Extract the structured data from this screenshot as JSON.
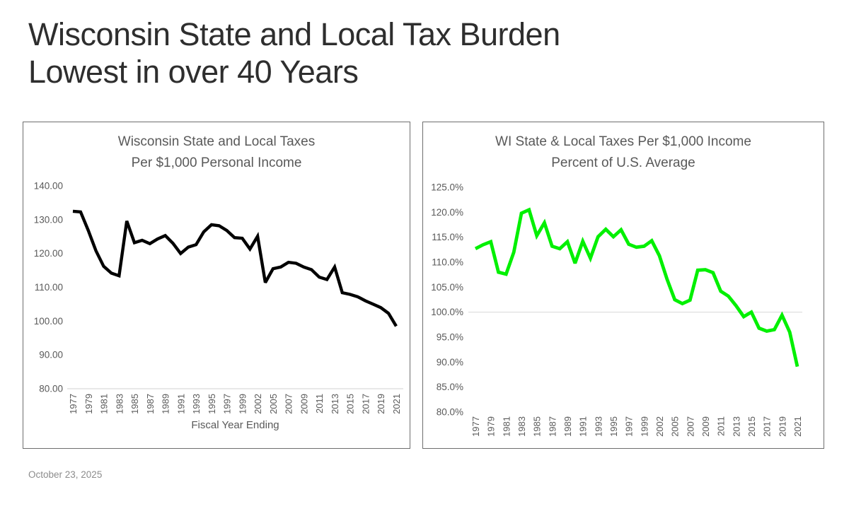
{
  "page": {
    "title_line1": "Wisconsin State and Local Tax Burden",
    "title_line2": "Lowest in over 40 Years",
    "footer": "October 23, 2025",
    "background_color": "#ffffff",
    "title_color": "#2e2e2e",
    "chart_text_color": "#595959"
  },
  "chart_data": [
    {
      "type": "line",
      "title_line1": "Wisconsin State and Local Taxes",
      "title_line2": "Per $1,000 Personal Income",
      "x_axis_title": "Fiscal Year Ending",
      "line_color": "#000000",
      "gridline_color": "#d9d9d9",
      "legend": "none",
      "ylim": [
        80,
        140
      ],
      "y_tick_labels": [
        "140.00",
        "130.00",
        "120.00",
        "110.00",
        "100.00",
        "90.00",
        "80.00"
      ],
      "y_tick_values": [
        140,
        130,
        120,
        110,
        100,
        90,
        80
      ],
      "gridline_values": [
        80
      ],
      "x_tick_labels": [
        "1977",
        "1979",
        "1981",
        "1983",
        "1985",
        "1987",
        "1989",
        "1991",
        "1993",
        "1995",
        "1997",
        "1999",
        "2002",
        "2005",
        "2007",
        "2009",
        "2011",
        "2013",
        "2015",
        "2017",
        "2019",
        "2021"
      ],
      "x": [
        1977,
        1978,
        1979,
        1980,
        1981,
        1982,
        1983,
        1984,
        1985,
        1986,
        1987,
        1988,
        1989,
        1990,
        1991,
        1992,
        1993,
        1994,
        1995,
        1996,
        1997,
        1998,
        1999,
        2001,
        2002,
        2004,
        2005,
        2006,
        2007,
        2008,
        2009,
        2010,
        2011,
        2012,
        2013,
        2014,
        2015,
        2016,
        2017,
        2018,
        2019,
        2020,
        2021
      ],
      "values": [
        132.5,
        132.3,
        126.8,
        120.8,
        116.2,
        114.2,
        113.4,
        129.6,
        123.2,
        123.9,
        122.9,
        124.3,
        125.3,
        123.0,
        120.0,
        121.9,
        122.6,
        126.4,
        128.5,
        128.2,
        126.8,
        124.7,
        124.5,
        121.3,
        125.1,
        111.4,
        115.5,
        116.0,
        117.4,
        117.1,
        116.0,
        115.2,
        113.0,
        112.3,
        116.0,
        108.4,
        107.9,
        107.2,
        106.0,
        105.0,
        104.0,
        102.3,
        98.5
      ]
    },
    {
      "type": "line",
      "title_line1": "WI State & Local Taxes Per $1,000 Income",
      "title_line2": "Percent of U.S. Average",
      "x_axis_title": "",
      "line_color": "#00f000",
      "gridline_color": "#e0e0e0",
      "legend": "none",
      "ylim": [
        80,
        125
      ],
      "y_tick_labels": [
        "125.0%",
        "120.0%",
        "115.0%",
        "110.0%",
        "105.0%",
        "100.0%",
        "95.0%",
        "90.0%",
        "85.0%",
        "80.0%"
      ],
      "y_tick_values": [
        125,
        120,
        115,
        110,
        105,
        100,
        95,
        90,
        85,
        80
      ],
      "gridline_values": [
        100
      ],
      "x_tick_labels": [
        "1977",
        "1979",
        "1981",
        "1983",
        "1985",
        "1987",
        "1989",
        "1991",
        "1993",
        "1995",
        "1997",
        "1999",
        "2002",
        "2005",
        "2007",
        "2009",
        "2011",
        "2013",
        "2015",
        "2017",
        "2019",
        "2021"
      ],
      "x": [
        1977,
        1978,
        1979,
        1980,
        1981,
        1982,
        1983,
        1984,
        1985,
        1986,
        1987,
        1988,
        1989,
        1990,
        1991,
        1992,
        1993,
        1994,
        1995,
        1996,
        1997,
        1998,
        1999,
        2001,
        2002,
        2004,
        2005,
        2006,
        2007,
        2008,
        2009,
        2010,
        2011,
        2012,
        2013,
        2014,
        2015,
        2016,
        2017,
        2018,
        2019,
        2020,
        2021
      ],
      "values": [
        112.7,
        113.5,
        114.1,
        108.0,
        107.6,
        112.0,
        119.8,
        120.5,
        115.3,
        117.9,
        113.2,
        112.7,
        114.1,
        109.8,
        114.2,
        110.8,
        115.1,
        116.6,
        115.1,
        116.5,
        113.6,
        113.0,
        113.2,
        114.3,
        111.3,
        106.6,
        102.5,
        101.7,
        102.4,
        108.4,
        108.5,
        107.9,
        104.2,
        103.2,
        101.3,
        99.1,
        100.0,
        96.8,
        96.2,
        96.5,
        99.4,
        96.0,
        89.1
      ]
    }
  ]
}
